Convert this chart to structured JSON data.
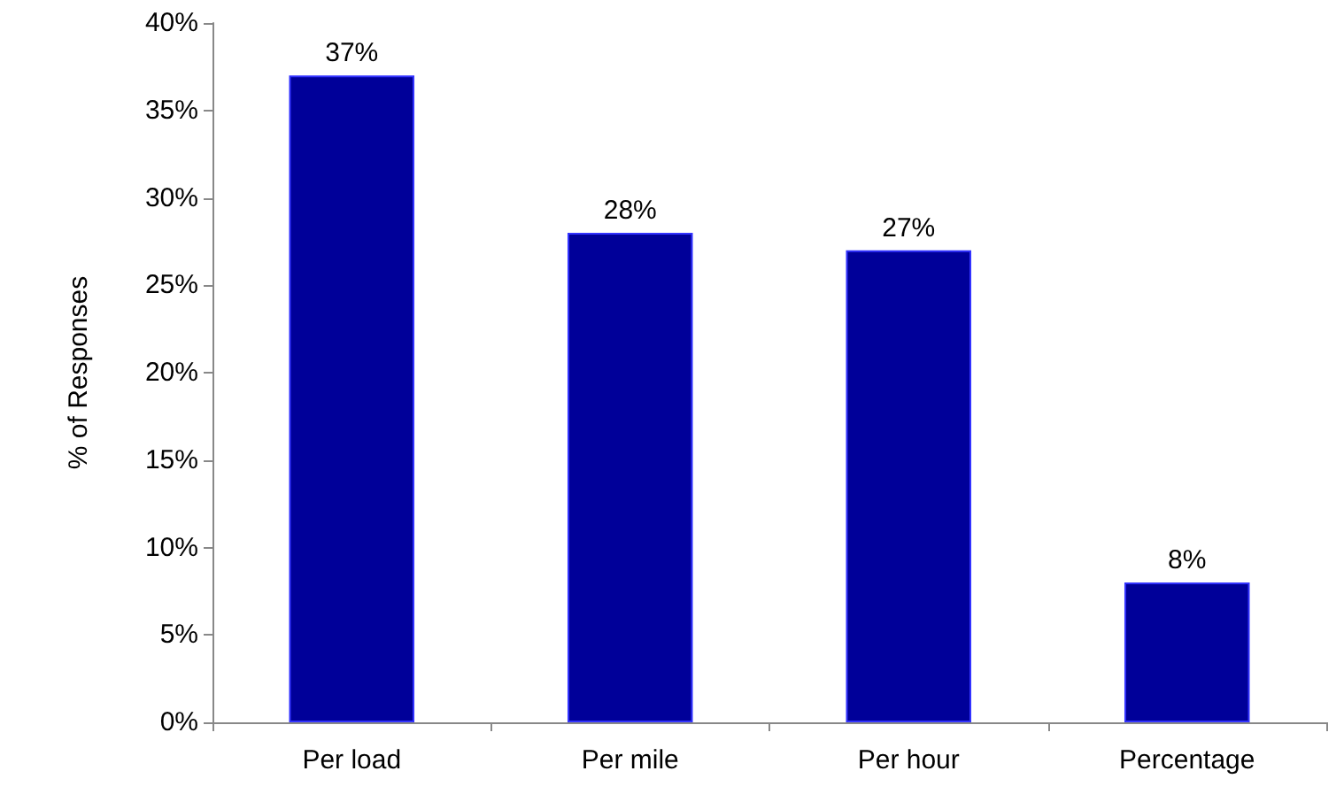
{
  "chart_data": {
    "type": "bar",
    "ylabel": "% of Responses",
    "categories": [
      "Per load",
      "Per mile",
      "Per hour",
      "Percentage"
    ],
    "values": [
      37,
      28,
      27,
      8
    ],
    "value_labels": [
      "37%",
      "28%",
      "27%",
      "8%"
    ],
    "color": "#000099",
    "ylim": [
      0,
      40
    ],
    "yticks": [
      {
        "value": 0,
        "label": "0%"
      },
      {
        "value": 5,
        "label": "5%"
      },
      {
        "value": 10,
        "label": "10%"
      },
      {
        "value": 15,
        "label": "15%"
      },
      {
        "value": 20,
        "label": "20%"
      },
      {
        "value": 25,
        "label": "25%"
      },
      {
        "value": 30,
        "label": "30%"
      },
      {
        "value": 35,
        "label": "35%"
      },
      {
        "value": 40,
        "label": "40%"
      }
    ],
    "grid": false
  }
}
